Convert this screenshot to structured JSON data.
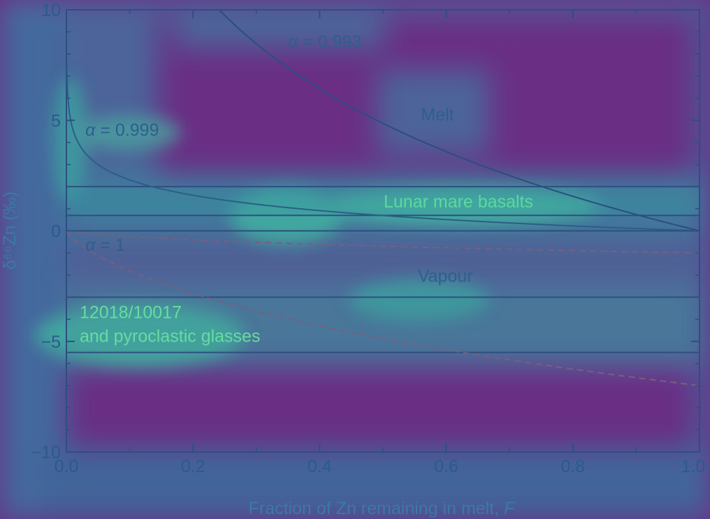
{
  "chart_data": {
    "type": "line",
    "xlabel": "Fraction of Zn remaining in melt,",
    "xlabel_var": "F",
    "ylabel": "δ⁶⁶Zn (‰)",
    "xlim": [
      0,
      1
    ],
    "ylim": [
      -10,
      10
    ],
    "x_ticks": [
      0,
      0.2,
      0.4,
      0.6,
      0.8,
      1.0
    ],
    "x_tick_labels": [
      "0.0",
      "0.2",
      "0.4",
      "0.6",
      "0.8",
      "1.0"
    ],
    "y_ticks": [
      -10,
      -5,
      0,
      5,
      10
    ],
    "y_tick_labels": [
      "−10",
      "−5",
      "0",
      "5",
      "10"
    ],
    "series": [
      {
        "alpha": 0.993,
        "phase": "melt",
        "style": "solid",
        "color": "#2a4f7e"
      },
      {
        "alpha": 0.993,
        "phase": "vapour",
        "style": "dashed",
        "color": "#76607f"
      },
      {
        "alpha": 0.999,
        "phase": "melt",
        "style": "solid",
        "color": "#2a5f86"
      },
      {
        "alpha": 0.999,
        "phase": "vapour",
        "style": "dashed",
        "color": "#76607f"
      },
      {
        "alpha": 1,
        "phase": "melt",
        "style": "solid",
        "color": "#2a4f7e"
      }
    ],
    "bands": [
      {
        "label": "Lunar mare basalts",
        "ymin": 0.7,
        "ymax": 2.0
      },
      {
        "label_lines": [
          "12018/10017",
          "and pyroclastic glasses"
        ],
        "ymin": -5.5,
        "ymax": -3.0
      }
    ],
    "annotations": [
      {
        "text": "α = 0.993",
        "x": 0.35,
        "y": 8.3
      },
      {
        "text": "Melt",
        "x": 0.56,
        "y": 5.0
      },
      {
        "text": "α = 0.999",
        "x": 0.03,
        "y": 4.3
      },
      {
        "text": "α = 1",
        "x": 0.03,
        "y": -0.9
      },
      {
        "text": "Vapour",
        "x": 0.555,
        "y": -2.3
      }
    ]
  }
}
